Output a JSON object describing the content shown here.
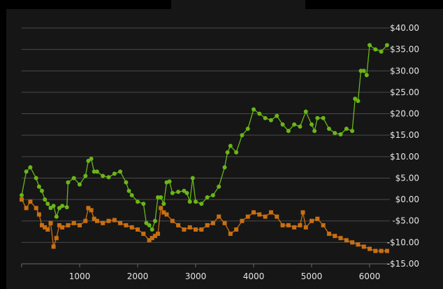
{
  "chart_data": {
    "type": "line",
    "title": "",
    "xlabel": "",
    "ylabel": "",
    "xlim": [
      0,
      6350
    ],
    "ylim": [
      -15,
      40
    ],
    "x_ticks": [
      0,
      1000,
      2000,
      3000,
      4000,
      5000,
      6000
    ],
    "x_tick_labels": [
      "",
      "1000",
      "2000",
      "3000",
      "4000",
      "5000",
      "6000"
    ],
    "y_ticks": [
      40,
      35,
      30,
      25,
      20,
      15,
      10,
      5,
      0,
      -5,
      -10,
      -15
    ],
    "y_tick_labels": [
      "$40.00",
      "$35.00",
      "$30.00",
      "$25.00",
      "$20.00",
      "$15.00",
      "$10.00",
      "$5.00",
      "$0.00",
      "-$5.00",
      "-$10.00",
      "-$15.00"
    ],
    "y_axis_position": "right",
    "grid": true,
    "legend": "none",
    "series": [
      {
        "color": "#6ab617",
        "marker": "circle",
        "x": [
          0,
          80,
          150,
          250,
          300,
          350,
          400,
          450,
          500,
          550,
          600,
          650,
          700,
          780,
          800,
          900,
          1000,
          1100,
          1150,
          1200,
          1250,
          1300,
          1400,
          1500,
          1600,
          1700,
          1800,
          1850,
          1900,
          2000,
          2100,
          2150,
          2200,
          2250,
          2300,
          2350,
          2400,
          2450,
          2500,
          2550,
          2600,
          2700,
          2800,
          2850,
          2900,
          2950,
          3000,
          3100,
          3200,
          3300,
          3400,
          3500,
          3550,
          3600,
          3700,
          3800,
          3900,
          4000,
          4100,
          4200,
          4300,
          4400,
          4500,
          4600,
          4700,
          4800,
          4900,
          5000,
          5050,
          5100,
          5200,
          5300,
          5400,
          5500,
          5600,
          5700,
          5750,
          5800,
          5850,
          5900,
          5950,
          6000,
          6100,
          6200,
          6300
        ],
        "values": [
          1,
          6.5,
          7.5,
          5,
          3,
          2,
          0,
          -1,
          -2,
          -1.5,
          -4,
          -2,
          -1.5,
          -1.8,
          4,
          5,
          3.5,
          5.5,
          9,
          9.5,
          6.5,
          6.5,
          5.5,
          5.2,
          6,
          6.5,
          4,
          2,
          1,
          -0.5,
          -1,
          -5.5,
          -6,
          -7,
          -5,
          0.5,
          0.5,
          -1,
          4,
          4.2,
          1.5,
          1.8,
          2,
          1.5,
          -0.5,
          5,
          -0.5,
          -1,
          0.5,
          1,
          3,
          7.5,
          11,
          12.5,
          11,
          15,
          16.5,
          21,
          20,
          19,
          18.5,
          19.5,
          17.5,
          16,
          17.5,
          17,
          20.5,
          17.5,
          16,
          19,
          19,
          16.5,
          15.5,
          15.2,
          16.5,
          16,
          23.5,
          23,
          30,
          30,
          29,
          36,
          35,
          34.5,
          36
        ]
      },
      {
        "color": "#c96f10",
        "marker": "square",
        "x": [
          0,
          80,
          150,
          250,
          300,
          350,
          400,
          450,
          500,
          550,
          600,
          650,
          700,
          800,
          900,
          1000,
          1100,
          1150,
          1200,
          1250,
          1300,
          1400,
          1500,
          1600,
          1700,
          1800,
          1900,
          2000,
          2100,
          2200,
          2250,
          2300,
          2350,
          2400,
          2450,
          2500,
          2600,
          2700,
          2800,
          2900,
          3000,
          3100,
          3200,
          3300,
          3400,
          3500,
          3600,
          3700,
          3800,
          3900,
          4000,
          4100,
          4200,
          4300,
          4400,
          4500,
          4600,
          4700,
          4800,
          4850,
          4900,
          5000,
          5100,
          5200,
          5300,
          5400,
          5500,
          5600,
          5700,
          5800,
          5900,
          6000,
          6100,
          6200,
          6300
        ],
        "values": [
          0,
          -2,
          -0.5,
          -2,
          -3.5,
          -6,
          -6.5,
          -7,
          -5.5,
          -11,
          -9,
          -6,
          -6.5,
          -6,
          -5.5,
          -6,
          -5,
          -2,
          -2.5,
          -4.5,
          -5,
          -5.5,
          -5,
          -4.8,
          -5.5,
          -6,
          -6.5,
          -7,
          -8,
          -9.5,
          -9,
          -8.5,
          -8,
          -2,
          -3,
          -3.5,
          -5,
          -6,
          -7,
          -6.5,
          -7,
          -7,
          -6,
          -5.5,
          -4,
          -5.5,
          -8,
          -7,
          -5,
          -4,
          -3,
          -3.5,
          -4,
          -3,
          -4,
          -6,
          -6,
          -6.5,
          -6,
          -3,
          -6.5,
          -5,
          -4.5,
          -6,
          -8,
          -8.5,
          -9,
          -9.5,
          -10,
          -10.5,
          -11,
          -11.5,
          -12,
          -12,
          -12
        ]
      }
    ]
  }
}
